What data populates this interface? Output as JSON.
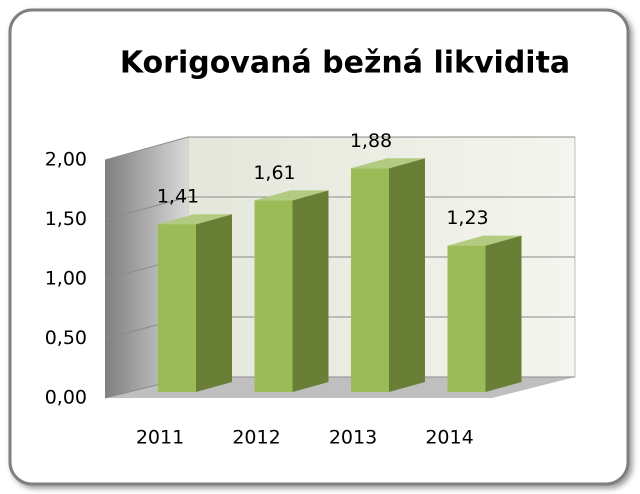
{
  "chart_data": {
    "type": "bar3d",
    "title": "Korigovaná bežná likvidita",
    "categories": [
      "2011",
      "2012",
      "2013",
      "2014"
    ],
    "values": [
      1.41,
      1.61,
      1.88,
      1.23
    ],
    "value_labels": [
      "1,41",
      "1,61",
      "1,88",
      "1,23"
    ],
    "color": "#9bbb59",
    "ylim": [
      0,
      2
    ],
    "yticks": [
      {
        "value": 0,
        "label": "0,00"
      },
      {
        "value": 0.5,
        "label": "0,50"
      },
      {
        "value": 1,
        "label": "1,00"
      },
      {
        "value": 1.5,
        "label": "1,50"
      },
      {
        "value": 2,
        "label": "2,00"
      }
    ],
    "grid": true
  }
}
